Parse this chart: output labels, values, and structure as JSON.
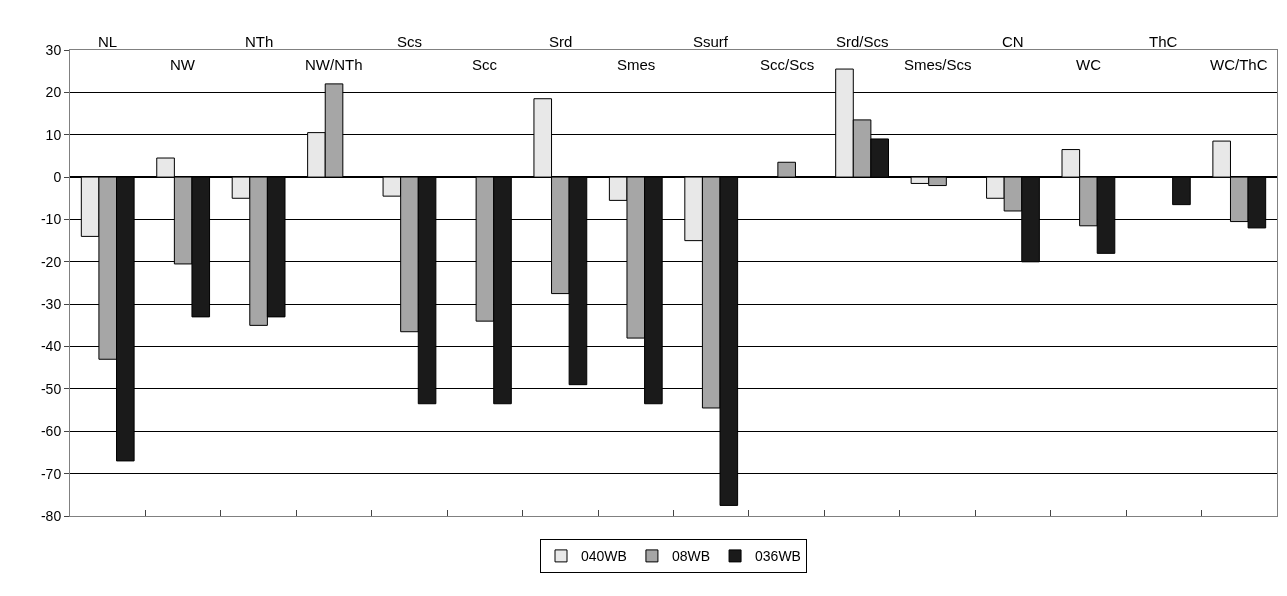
{
  "chart_data": {
    "type": "bar",
    "categories": [
      "NL",
      "NW",
      "NTh",
      "NW/NTh",
      "Scs",
      "Scc",
      "Srd",
      "Smes",
      "Ssurf",
      "Scc/Scs",
      "Srd/Scs",
      "Smes/Scs",
      "CN",
      "WC",
      "ThC",
      "WC/ThC"
    ],
    "series": [
      {
        "name": "040WB",
        "color": "#e8e8e8",
        "values": [
          -14,
          4.5,
          -5,
          10.5,
          -4.5,
          null,
          18.5,
          -5.5,
          -15,
          null,
          25.5,
          -1.5,
          -5,
          6.5,
          null,
          8.5
        ]
      },
      {
        "name": "08WB",
        "color": "#a6a6a6",
        "values": [
          -43,
          -20.5,
          -35,
          22,
          -36.5,
          -34,
          -27.5,
          -38,
          -54.5,
          3.5,
          13.5,
          -2,
          -8,
          -11.5,
          null,
          -10.5
        ]
      },
      {
        "name": "036WB",
        "color": "#1a1a1a",
        "values": [
          -67,
          -33,
          -33,
          null,
          -53.5,
          -53.5,
          -49,
          -53.5,
          -77.5,
          null,
          9,
          null,
          -20,
          -18,
          -6.5,
          -12
        ]
      }
    ],
    "ylim": [
      -80,
      30
    ],
    "yticks": [
      -80,
      -70,
      -60,
      -50,
      -40,
      -30,
      -20,
      -10,
      0,
      10,
      20,
      30
    ],
    "grid": "y",
    "legend": "bottom"
  }
}
